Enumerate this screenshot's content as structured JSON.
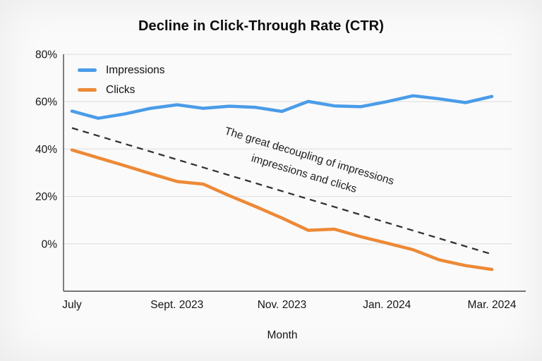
{
  "title": "Decline in Click-Through Rate (CTR)",
  "chart_data": {
    "type": "line",
    "title": "Decline in Click-Through Rate (CTR)",
    "xlabel": "Month",
    "ylabel": "",
    "x_tick_labels": [
      "July",
      "Sept. 2023",
      "Nov. 2023",
      "Jan. 2024",
      "Mar. 2024"
    ],
    "x_tick_indices": [
      0,
      4,
      8,
      12,
      16
    ],
    "n_points": 17,
    "x_period": "semi-monthly, July 2023 to March 2024",
    "ylim": [
      -20,
      80
    ],
    "y_ticks": [
      80,
      60,
      40,
      20,
      0
    ],
    "y_tick_labels": [
      "80%",
      "60%",
      "40%",
      "20%",
      "0%"
    ],
    "grid": true,
    "legend_position": "top-left-inside",
    "series": [
      {
        "name": "Impressions",
        "color": "#4A9CE8",
        "values": [
          56.0,
          53.0,
          54.8,
          57.2,
          58.7,
          57.2,
          58.1,
          57.6,
          55.9,
          60.1,
          58.2,
          57.9,
          60.0,
          62.5,
          61.2,
          59.6,
          62.2
        ]
      },
      {
        "name": "Clicks",
        "color": "#ED8936",
        "values": [
          39.6,
          36.3,
          33.0,
          29.6,
          26.3,
          25.2,
          20.3,
          15.7,
          10.9,
          5.7,
          6.2,
          3.0,
          0.3,
          -2.5,
          -6.8,
          -9.2,
          -10.8
        ]
      }
    ],
    "trendline": {
      "style": "dashed",
      "color": "#333333",
      "start_value": 48.9,
      "end_value": -4.4
    },
    "annotation": {
      "lines": [
        "The great decoupling of impressions",
        "impressions and clicks"
      ],
      "rotation_deg": 16.8,
      "color": "#1f1f1f"
    }
  },
  "colors": {
    "background": "#fafafa",
    "gridline": "#e4e4e4",
    "spine": "#4a4a4a",
    "tick_text": "#161616"
  }
}
